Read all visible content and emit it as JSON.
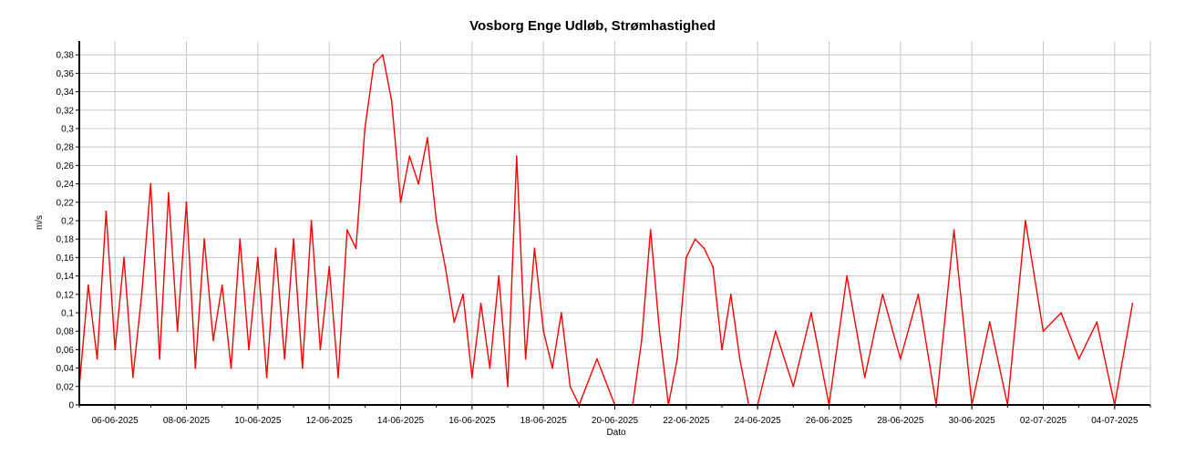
{
  "chart_data": {
    "type": "line",
    "title": "Vosborg Enge Udløb, Strømhastighed",
    "xlabel": "Dato",
    "ylabel": "m/s",
    "xlim": [
      "2025-06-05",
      "2025-07-05"
    ],
    "ylim": [
      0,
      0.395
    ],
    "grid": true,
    "legend": "none",
    "x_ticks": [
      "2025-06-06",
      "2025-06-08",
      "2025-06-10",
      "2025-06-12",
      "2025-06-14",
      "2025-06-16",
      "2025-06-18",
      "2025-06-20",
      "2025-06-22",
      "2025-06-24",
      "2025-06-26",
      "2025-06-28",
      "2025-06-30",
      "2025-07-02",
      "2025-07-04"
    ],
    "x_tick_labels": [
      "06-06-2025",
      "08-06-2025",
      "10-06-2025",
      "12-06-2025",
      "14-06-2025",
      "16-06-2025",
      "18-06-2025",
      "20-06-2025",
      "22-06-2025",
      "24-06-2025",
      "26-06-2025",
      "28-06-2025",
      "30-06-2025",
      "02-07-2025",
      "04-07-2025"
    ],
    "y_ticks": [
      0,
      0.02,
      0.04,
      0.06,
      0.08,
      0.1,
      0.12,
      0.14,
      0.16,
      0.18,
      0.2,
      0.22,
      0.24,
      0.26,
      0.28,
      0.3,
      0.32,
      0.34,
      0.36,
      0.38
    ],
    "y_tick_labels": [
      "0",
      "0,02",
      "0,04",
      "0,06",
      "0,08",
      "0,1",
      "0,12",
      "0,14",
      "0,16",
      "0,18",
      "0,2",
      "0,22",
      "0,24",
      "0,26",
      "0,28",
      "0,3",
      "0,32",
      "0,34",
      "0,36",
      "0,38"
    ],
    "series": [
      {
        "name": "",
        "color": "#ff0000",
        "x": [
          "2025-06-05 00:00",
          "2025-06-05 06:00",
          "2025-06-05 12:00",
          "2025-06-05 18:00",
          "2025-06-06 00:00",
          "2025-06-06 06:00",
          "2025-06-06 12:00",
          "2025-06-06 18:00",
          "2025-06-07 00:00",
          "2025-06-07 06:00",
          "2025-06-07 12:00",
          "2025-06-07 18:00",
          "2025-06-08 00:00",
          "2025-06-08 06:00",
          "2025-06-08 12:00",
          "2025-06-08 18:00",
          "2025-06-09 00:00",
          "2025-06-09 06:00",
          "2025-06-09 12:00",
          "2025-06-09 18:00",
          "2025-06-10 00:00",
          "2025-06-10 06:00",
          "2025-06-10 12:00",
          "2025-06-10 18:00",
          "2025-06-11 00:00",
          "2025-06-11 06:00",
          "2025-06-11 12:00",
          "2025-06-11 18:00",
          "2025-06-12 00:00",
          "2025-06-12 06:00",
          "2025-06-12 12:00",
          "2025-06-12 18:00",
          "2025-06-13 00:00",
          "2025-06-13 06:00",
          "2025-06-13 12:00",
          "2025-06-13 18:00",
          "2025-06-14 00:00",
          "2025-06-14 06:00",
          "2025-06-14 12:00",
          "2025-06-14 18:00",
          "2025-06-15 00:00",
          "2025-06-15 06:00",
          "2025-06-15 12:00",
          "2025-06-15 18:00",
          "2025-06-16 00:00",
          "2025-06-16 06:00",
          "2025-06-16 12:00",
          "2025-06-16 18:00",
          "2025-06-17 00:00",
          "2025-06-17 06:00",
          "2025-06-17 12:00",
          "2025-06-17 18:00",
          "2025-06-18 00:00",
          "2025-06-18 06:00",
          "2025-06-18 12:00",
          "2025-06-18 18:00",
          "2025-06-19 00:00",
          "2025-06-19 12:00",
          "2025-06-20 00:00",
          "2025-06-20 12:00",
          "2025-06-20 18:00",
          "2025-06-21 00:00",
          "2025-06-21 06:00",
          "2025-06-21 12:00",
          "2025-06-21 18:00",
          "2025-06-22 00:00",
          "2025-06-22 06:00",
          "2025-06-22 12:00",
          "2025-06-22 18:00",
          "2025-06-23 00:00",
          "2025-06-23 06:00",
          "2025-06-23 12:00",
          "2025-06-23 18:00",
          "2025-06-24 00:00",
          "2025-06-24 12:00",
          "2025-06-25 00:00",
          "2025-06-25 12:00",
          "2025-06-26 00:00",
          "2025-06-26 12:00",
          "2025-06-27 00:00",
          "2025-06-27 12:00",
          "2025-06-28 00:00",
          "2025-06-28 12:00",
          "2025-06-29 00:00",
          "2025-06-29 12:00",
          "2025-06-30 00:00",
          "2025-06-30 12:00",
          "2025-07-01 00:00",
          "2025-07-01 12:00",
          "2025-07-02 00:00",
          "2025-07-02 12:00",
          "2025-07-03 00:00",
          "2025-07-03 12:00",
          "2025-07-04 00:00",
          "2025-07-04 12:00"
        ],
        "y": [
          0.02,
          0.13,
          0.05,
          0.21,
          0.06,
          0.16,
          0.03,
          0.12,
          0.24,
          0.05,
          0.23,
          0.08,
          0.22,
          0.04,
          0.18,
          0.07,
          0.13,
          0.04,
          0.18,
          0.06,
          0.16,
          0.03,
          0.17,
          0.05,
          0.18,
          0.04,
          0.2,
          0.06,
          0.15,
          0.03,
          0.19,
          0.17,
          0.3,
          0.37,
          0.38,
          0.33,
          0.22,
          0.27,
          0.24,
          0.29,
          0.2,
          0.15,
          0.09,
          0.12,
          0.03,
          0.11,
          0.04,
          0.14,
          0.02,
          0.27,
          0.05,
          0.17,
          0.08,
          0.04,
          0.1,
          0.02,
          0.0,
          0.05,
          0.0,
          0.0,
          0.07,
          0.19,
          0.08,
          0.0,
          0.05,
          0.16,
          0.18,
          0.17,
          0.15,
          0.06,
          0.12,
          0.05,
          0.0,
          0.0,
          0.08,
          0.02,
          0.1,
          0.0,
          0.14,
          0.03,
          0.12,
          0.05,
          0.12,
          0.0,
          0.19,
          0.0,
          0.09,
          0.0,
          0.2,
          0.08,
          0.1,
          0.05,
          0.09,
          0.0,
          0.11
        ]
      }
    ]
  }
}
